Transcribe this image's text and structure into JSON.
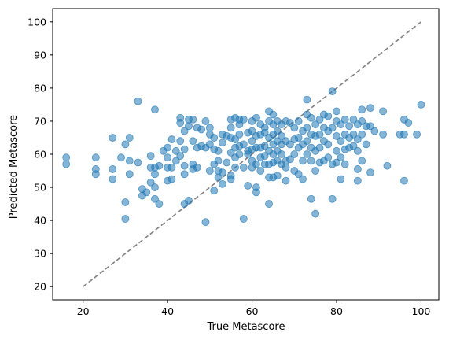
{
  "chart_data": {
    "type": "scatter",
    "title": "",
    "xlabel": "True Metascore",
    "ylabel": "Predicted Metascore",
    "xlim": [
      12.8,
      104.2
    ],
    "ylim": [
      16.0,
      104.0
    ],
    "xticks": [
      20,
      40,
      60,
      80,
      100
    ],
    "yticks": [
      20,
      30,
      40,
      50,
      60,
      70,
      80,
      90,
      100
    ],
    "grid": false,
    "legend": "none",
    "marker_color": "#1f77b4",
    "marker_alpha": 0.55,
    "reference_line": {
      "x": [
        20,
        100
      ],
      "y": [
        20,
        100
      ],
      "style": "dashed",
      "color": "#808080"
    },
    "points": [
      [
        16,
        59
      ],
      [
        16,
        57
      ],
      [
        23,
        59
      ],
      [
        23,
        55.5
      ],
      [
        23,
        54
      ],
      [
        27,
        65
      ],
      [
        27,
        55.5
      ],
      [
        27,
        52.5
      ],
      [
        29,
        59
      ],
      [
        30,
        63
      ],
      [
        30,
        45.5
      ],
      [
        30,
        40.5
      ],
      [
        31,
        65
      ],
      [
        31,
        58
      ],
      [
        31,
        54
      ],
      [
        33,
        76
      ],
      [
        33,
        57.5
      ],
      [
        34,
        49.5
      ],
      [
        34,
        47.5
      ],
      [
        35,
        48.5
      ],
      [
        36,
        51.5
      ],
      [
        36,
        59.5
      ],
      [
        36,
        56
      ],
      [
        37,
        73.5
      ],
      [
        37,
        56
      ],
      [
        37,
        54
      ],
      [
        37,
        50
      ],
      [
        37,
        46.5
      ],
      [
        38,
        45
      ],
      [
        38,
        56.5
      ],
      [
        39,
        61
      ],
      [
        40,
        62
      ],
      [
        40,
        59
      ],
      [
        40,
        52
      ],
      [
        40,
        56
      ],
      [
        41,
        56
      ],
      [
        41,
        52.5
      ],
      [
        41,
        64.5
      ],
      [
        42,
        61
      ],
      [
        42,
        58
      ],
      [
        43,
        71
      ],
      [
        43,
        69.5
      ],
      [
        43,
        64
      ],
      [
        43,
        59.5
      ],
      [
        44,
        67
      ],
      [
        44,
        61.5
      ],
      [
        44,
        56.5
      ],
      [
        44,
        54
      ],
      [
        44,
        45
      ],
      [
        45,
        68.5
      ],
      [
        45,
        70.5
      ],
      [
        45,
        46
      ],
      [
        46,
        70.5
      ],
      [
        46,
        64
      ],
      [
        46,
        57
      ],
      [
        46,
        55.5
      ],
      [
        47,
        62
      ],
      [
        47,
        68
      ],
      [
        47,
        56
      ],
      [
        48,
        67.5
      ],
      [
        48,
        62.5
      ],
      [
        49,
        70
      ],
      [
        49,
        62
      ],
      [
        49,
        39.5
      ],
      [
        50,
        66
      ],
      [
        50,
        63
      ],
      [
        50,
        55
      ],
      [
        50,
        68
      ],
      [
        51,
        65
      ],
      [
        51,
        61.5
      ],
      [
        51,
        49
      ],
      [
        51,
        57
      ],
      [
        52,
        61
      ],
      [
        52,
        55
      ],
      [
        52,
        53
      ],
      [
        52,
        58
      ],
      [
        53,
        66
      ],
      [
        53,
        63.5
      ],
      [
        53,
        54.5
      ],
      [
        53,
        51
      ],
      [
        54,
        65.5
      ],
      [
        54,
        57.5
      ],
      [
        55,
        70.5
      ],
      [
        55,
        68
      ],
      [
        55,
        65
      ],
      [
        55,
        60.5
      ],
      [
        55,
        53.5
      ],
      [
        55,
        52.5
      ],
      [
        56,
        71
      ],
      [
        56,
        64.5
      ],
      [
        56,
        62
      ],
      [
        56,
        59
      ],
      [
        56,
        56
      ],
      [
        57,
        70.5
      ],
      [
        57,
        69
      ],
      [
        57,
        66
      ],
      [
        57,
        60
      ],
      [
        57,
        62.5
      ],
      [
        58,
        70.5
      ],
      [
        58,
        63
      ],
      [
        58,
        56
      ],
      [
        58,
        40.5
      ],
      [
        59,
        66.5
      ],
      [
        59,
        61
      ],
      [
        59,
        50.5
      ],
      [
        59,
        60
      ],
      [
        60,
        70
      ],
      [
        60,
        67
      ],
      [
        60,
        64
      ],
      [
        60,
        61.5
      ],
      [
        60,
        58
      ],
      [
        60,
        56
      ],
      [
        61,
        71
      ],
      [
        61,
        65.5
      ],
      [
        61,
        62
      ],
      [
        61,
        57
      ],
      [
        61,
        50
      ],
      [
        61,
        48.5
      ],
      [
        62,
        69
      ],
      [
        62,
        66
      ],
      [
        62,
        62
      ],
      [
        62,
        59
      ],
      [
        62,
        55
      ],
      [
        63,
        68
      ],
      [
        63,
        66.5
      ],
      [
        63,
        62.5
      ],
      [
        63,
        59.5
      ],
      [
        63,
        57
      ],
      [
        64,
        73
      ],
      [
        64,
        70
      ],
      [
        64,
        65
      ],
      [
        64,
        61
      ],
      [
        64,
        57
      ],
      [
        64,
        53
      ],
      [
        64,
        45
      ],
      [
        65,
        72
      ],
      [
        65,
        69
      ],
      [
        65,
        66
      ],
      [
        65,
        63
      ],
      [
        65,
        60
      ],
      [
        65,
        57.5
      ],
      [
        65,
        53
      ],
      [
        66,
        70
      ],
      [
        66,
        67
      ],
      [
        66,
        64
      ],
      [
        66,
        61
      ],
      [
        66,
        58
      ],
      [
        66,
        53.5
      ],
      [
        67,
        69
      ],
      [
        67,
        65.5
      ],
      [
        67,
        63
      ],
      [
        67,
        60
      ],
      [
        67,
        57
      ],
      [
        68,
        70
      ],
      [
        68,
        64
      ],
      [
        68,
        58
      ],
      [
        68,
        56
      ],
      [
        68,
        52
      ],
      [
        69,
        69.5
      ],
      [
        69,
        63
      ],
      [
        69,
        58.5
      ],
      [
        70,
        68
      ],
      [
        70,
        64.5
      ],
      [
        70,
        60
      ],
      [
        70,
        55
      ],
      [
        71,
        70
      ],
      [
        71,
        65
      ],
      [
        71,
        62
      ],
      [
        71,
        54
      ],
      [
        72,
        67
      ],
      [
        72,
        63
      ],
      [
        72,
        58
      ],
      [
        72,
        52.5
      ],
      [
        73,
        76.5
      ],
      [
        73,
        72
      ],
      [
        73,
        68
      ],
      [
        73,
        64
      ],
      [
        73,
        60
      ],
      [
        74,
        71
      ],
      [
        74,
        66
      ],
      [
        74,
        62
      ],
      [
        74,
        58
      ],
      [
        74,
        46.5
      ],
      [
        75,
        69
      ],
      [
        75,
        65.5
      ],
      [
        75,
        61
      ],
      [
        75,
        55
      ],
      [
        75,
        42
      ],
      [
        76,
        70.5
      ],
      [
        76,
        66
      ],
      [
        76,
        62
      ],
      [
        76,
        57.5
      ],
      [
        77,
        72
      ],
      [
        77,
        68
      ],
      [
        77,
        64
      ],
      [
        77,
        58
      ],
      [
        78,
        71.5
      ],
      [
        78,
        67
      ],
      [
        78,
        63
      ],
      [
        78,
        59
      ],
      [
        79,
        79
      ],
      [
        79,
        68
      ],
      [
        79,
        57
      ],
      [
        79,
        46.5
      ],
      [
        80,
        73
      ],
      [
        80,
        70
      ],
      [
        80,
        65.5
      ],
      [
        80,
        61
      ],
      [
        80,
        57.5
      ],
      [
        81,
        69
      ],
      [
        81,
        64
      ],
      [
        81,
        59
      ],
      [
        81,
        52.5
      ],
      [
        82,
        70.5
      ],
      [
        82,
        66
      ],
      [
        82,
        61.5
      ],
      [
        82,
        57
      ],
      [
        83,
        68.5
      ],
      [
        83,
        65
      ],
      [
        83,
        62
      ],
      [
        84,
        70.5
      ],
      [
        84,
        66
      ],
      [
        84,
        62.5
      ],
      [
        85,
        69
      ],
      [
        85,
        64.5
      ],
      [
        85,
        61
      ],
      [
        85,
        55.5
      ],
      [
        85,
        52
      ],
      [
        86,
        73.5
      ],
      [
        86,
        70
      ],
      [
        86,
        66
      ],
      [
        86,
        58
      ],
      [
        87,
        68.5
      ],
      [
        87,
        63
      ],
      [
        88,
        74
      ],
      [
        88,
        68.5
      ],
      [
        88,
        54.5
      ],
      [
        89,
        67
      ],
      [
        91,
        73
      ],
      [
        91,
        66
      ],
      [
        92,
        56.5
      ],
      [
        95,
        66
      ],
      [
        96,
        70.5
      ],
      [
        96,
        66
      ],
      [
        96,
        52
      ],
      [
        97,
        69.5
      ],
      [
        99,
        66
      ],
      [
        100,
        75
      ]
    ]
  }
}
